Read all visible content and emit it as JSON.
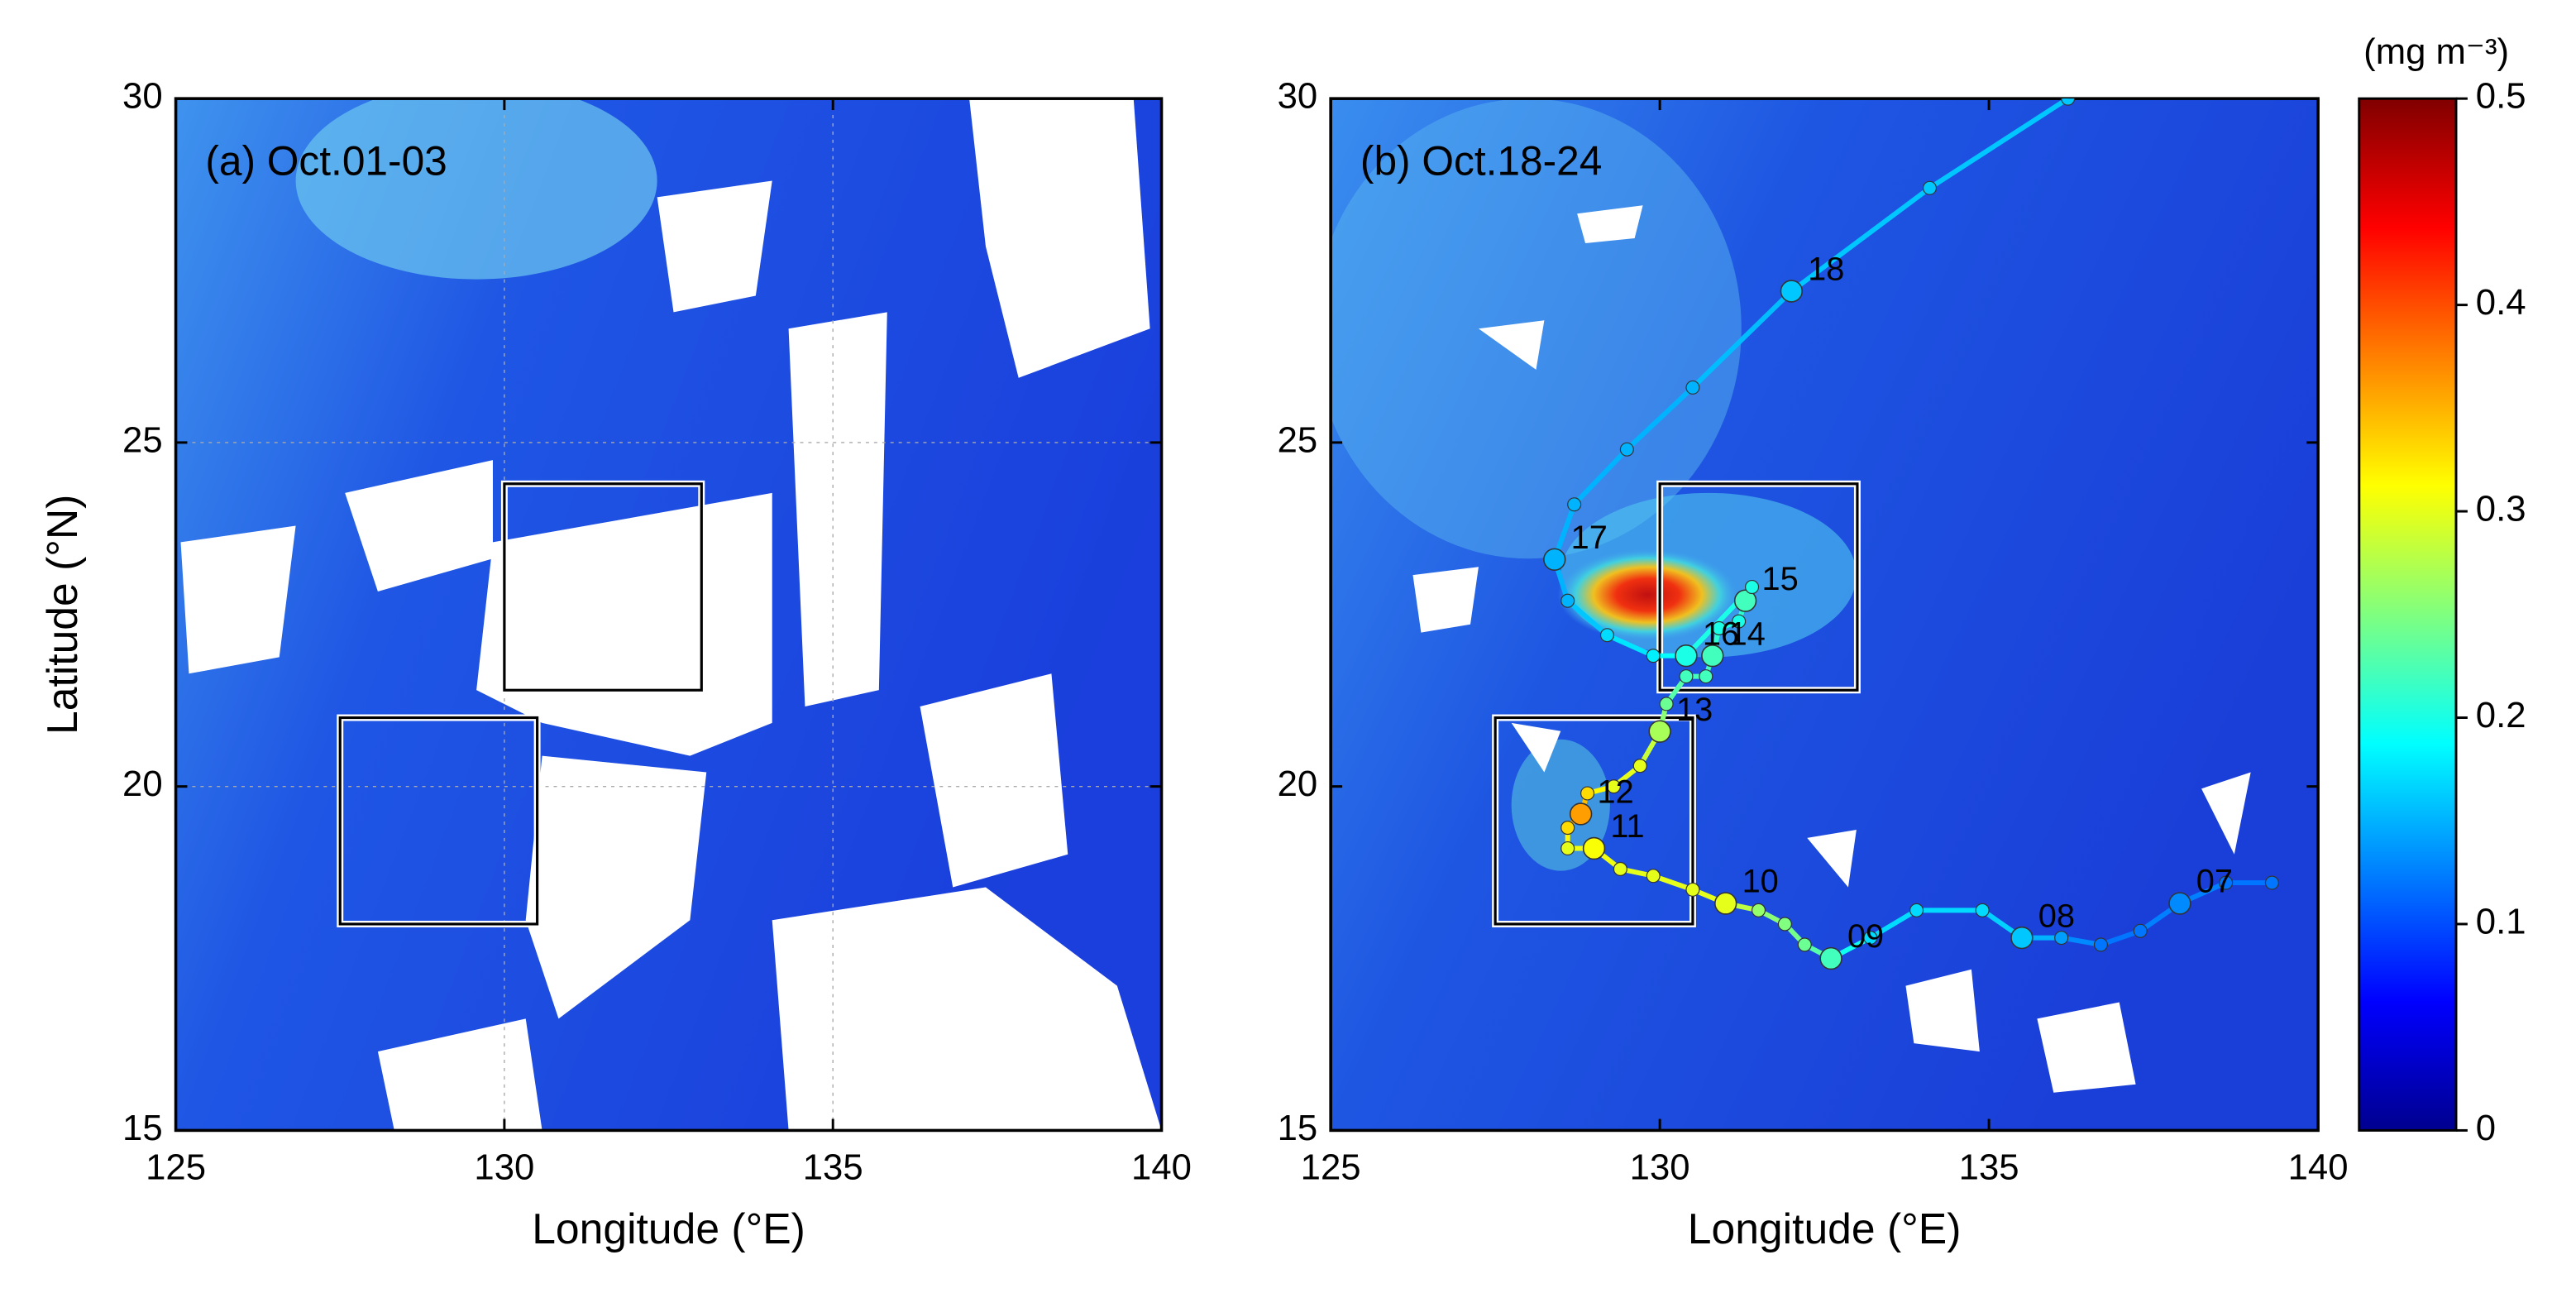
{
  "chart_data": [
    {
      "type": "map",
      "title": "(a) Oct.01-03",
      "xlabel": "Longitude (°E)",
      "ylabel": "Latitude (°N)",
      "xlim": [
        125,
        140
      ],
      "ylim": [
        15,
        30
      ],
      "xticks": [
        125,
        130,
        135,
        140
      ],
      "yticks": [
        15,
        20,
        25,
        30
      ],
      "grid": true,
      "boxes": [
        {
          "xlim": [
            127.5,
            130.5
          ],
          "ylim": [
            18.0,
            21.0
          ]
        },
        {
          "xlim": [
            130,
            133
          ],
          "ylim": [
            21.4,
            24.4
          ]
        }
      ]
    },
    {
      "type": "map",
      "title": "(b) Oct.18-24",
      "xlabel": "Longitude (°E)",
      "xlim": [
        125,
        140
      ],
      "ylim": [
        15,
        30
      ],
      "xticks": [
        125,
        130,
        135,
        140
      ],
      "yticks": [
        15,
        20,
        25,
        30
      ],
      "grid": false,
      "boxes": [
        {
          "xlim": [
            127.5,
            130.5
          ],
          "ylim": [
            18.0,
            21.0
          ]
        },
        {
          "xlim": [
            130,
            133
          ],
          "ylim": [
            21.4,
            24.4
          ]
        }
      ],
      "track": [
        {
          "lon": 139.3,
          "lat": 18.6,
          "chl": 0.12
        },
        {
          "lon": 138.6,
          "lat": 18.6,
          "chl": 0.12
        },
        {
          "lon": 137.9,
          "lat": 18.3,
          "chl": 0.13,
          "label": "07"
        },
        {
          "lon": 137.3,
          "lat": 17.9,
          "chl": 0.12
        },
        {
          "lon": 136.7,
          "lat": 17.7,
          "chl": 0.12
        },
        {
          "lon": 136.1,
          "lat": 17.8,
          "chl": 0.14
        },
        {
          "lon": 135.5,
          "lat": 17.8,
          "chl": 0.16,
          "label": "08"
        },
        {
          "lon": 134.9,
          "lat": 18.2,
          "chl": 0.17
        },
        {
          "lon": 133.9,
          "lat": 18.2,
          "chl": 0.17
        },
        {
          "lon": 133.2,
          "lat": 17.8,
          "chl": 0.17
        },
        {
          "lon": 132.6,
          "lat": 17.5,
          "chl": 0.22,
          "label": "09"
        },
        {
          "lon": 132.2,
          "lat": 17.7,
          "chl": 0.24
        },
        {
          "lon": 131.9,
          "lat": 18.0,
          "chl": 0.25
        },
        {
          "lon": 131.5,
          "lat": 18.2,
          "chl": 0.26
        },
        {
          "lon": 131.0,
          "lat": 18.3,
          "chl": 0.3,
          "label": "10"
        },
        {
          "lon": 130.5,
          "lat": 18.5,
          "chl": 0.3
        },
        {
          "lon": 129.9,
          "lat": 18.7,
          "chl": 0.3
        },
        {
          "lon": 129.4,
          "lat": 18.8,
          "chl": 0.3
        },
        {
          "lon": 129.0,
          "lat": 19.1,
          "chl": 0.31,
          "label": "11"
        },
        {
          "lon": 128.6,
          "lat": 19.1,
          "chl": 0.3
        },
        {
          "lon": 128.6,
          "lat": 19.4,
          "chl": 0.33
        },
        {
          "lon": 128.8,
          "lat": 19.6,
          "chl": 0.36,
          "label": "12"
        },
        {
          "lon": 128.9,
          "lat": 19.9,
          "chl": 0.33
        },
        {
          "lon": 129.3,
          "lat": 20.0,
          "chl": 0.3
        },
        {
          "lon": 129.7,
          "lat": 20.3,
          "chl": 0.3
        },
        {
          "lon": 130.0,
          "lat": 20.8,
          "chl": 0.27,
          "label": "13"
        },
        {
          "lon": 130.1,
          "lat": 21.2,
          "chl": 0.24
        },
        {
          "lon": 130.4,
          "lat": 21.6,
          "chl": 0.22
        },
        {
          "lon": 130.7,
          "lat": 21.6,
          "chl": 0.22
        },
        {
          "lon": 130.8,
          "lat": 21.9,
          "chl": 0.22,
          "label": "14"
        },
        {
          "lon": 130.9,
          "lat": 22.3,
          "chl": 0.2
        },
        {
          "lon": 131.2,
          "lat": 22.4,
          "chl": 0.2
        },
        {
          "lon": 131.3,
          "lat": 22.7,
          "chl": 0.22,
          "label": "15"
        },
        {
          "lon": 131.4,
          "lat": 22.9,
          "chl": 0.2
        },
        {
          "lon": 130.4,
          "lat": 21.9,
          "chl": 0.2,
          "label": "16"
        },
        {
          "lon": 129.9,
          "lat": 21.9,
          "chl": 0.18
        },
        {
          "lon": 129.2,
          "lat": 22.2,
          "chl": 0.17
        },
        {
          "lon": 128.6,
          "lat": 22.7,
          "chl": 0.15
        },
        {
          "lon": 128.4,
          "lat": 23.3,
          "chl": 0.15,
          "label": "17"
        },
        {
          "lon": 128.7,
          "lat": 24.1,
          "chl": 0.15
        },
        {
          "lon": 129.5,
          "lat": 24.9,
          "chl": 0.15
        },
        {
          "lon": 130.5,
          "lat": 25.8,
          "chl": 0.15
        },
        {
          "lon": 132.0,
          "lat": 27.2,
          "chl": 0.16,
          "label": "18"
        },
        {
          "lon": 134.1,
          "lat": 28.7,
          "chl": 0.16
        },
        {
          "lon": 136.2,
          "lat": 30.0,
          "chl": 0.16
        }
      ],
      "colorbar": {
        "label": "(mg m⁻³)",
        "clim": [
          0,
          0.5
        ],
        "cticks": [
          0,
          0.1,
          0.2,
          0.3,
          0.4,
          0.5
        ],
        "colormap": "jet"
      }
    }
  ]
}
